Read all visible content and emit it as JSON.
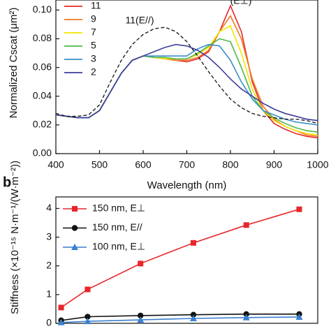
{
  "chart_data": [
    {
      "type": "line",
      "xlabel": "Wavelength (nm)",
      "ylabel": "Normalized Cscat (μm²)",
      "annotations": [
        "11(E//)",
        "(E⊥)"
      ],
      "x": [
        400,
        425,
        450,
        475,
        500,
        525,
        550,
        575,
        600,
        625,
        650,
        675,
        700,
        725,
        750,
        775,
        800,
        825,
        850,
        875,
        900,
        925,
        950,
        975,
        1000
      ],
      "xlim": [
        400,
        1000
      ],
      "xticks": [
        400,
        500,
        600,
        700,
        800,
        900,
        1000
      ],
      "ylim": [
        0,
        0.107
      ],
      "yticks": [
        {
          "value": 0,
          "label": "0.00"
        },
        {
          "value": 0.02,
          "label": "0.02"
        },
        {
          "value": 0.04,
          "label": "0.04"
        },
        {
          "value": 0.06,
          "label": "0.06"
        },
        {
          "value": 0.08,
          "label": "0.08"
        },
        {
          "value": 0.1,
          "label": "0.10"
        }
      ],
      "series": [
        {
          "name": "11",
          "color": "#e8262a",
          "values": [
            0.027,
            0.026,
            0.025,
            0.025,
            0.03,
            0.043,
            0.056,
            0.065,
            0.068,
            0.067,
            0.066,
            0.065,
            0.064,
            0.066,
            0.071,
            0.085,
            0.103,
            0.085,
            0.05,
            0.03,
            0.021,
            0.017,
            0.014,
            0.012,
            0.011
          ]
        },
        {
          "name": "9",
          "color": "#f07a22",
          "values": [
            0.027,
            0.026,
            0.025,
            0.025,
            0.03,
            0.043,
            0.056,
            0.065,
            0.068,
            0.067,
            0.066,
            0.065,
            0.065,
            0.067,
            0.072,
            0.085,
            0.096,
            0.08,
            0.052,
            0.033,
            0.024,
            0.019,
            0.016,
            0.013,
            0.012
          ]
        },
        {
          "name": "7",
          "color": "#f2e200",
          "values": [
            0.027,
            0.026,
            0.025,
            0.025,
            0.03,
            0.043,
            0.056,
            0.065,
            0.068,
            0.067,
            0.066,
            0.066,
            0.066,
            0.069,
            0.074,
            0.085,
            0.089,
            0.07,
            0.045,
            0.03,
            0.023,
            0.019,
            0.016,
            0.014,
            0.013
          ]
        },
        {
          "name": "5",
          "color": "#4cb848",
          "values": [
            0.027,
            0.026,
            0.025,
            0.025,
            0.03,
            0.043,
            0.056,
            0.065,
            0.068,
            0.067,
            0.067,
            0.066,
            0.066,
            0.07,
            0.075,
            0.08,
            0.078,
            0.06,
            0.04,
            0.03,
            0.025,
            0.021,
            0.018,
            0.016,
            0.015
          ]
        },
        {
          "name": "3",
          "color": "#3a8fc7",
          "values": [
            0.027,
            0.026,
            0.025,
            0.025,
            0.03,
            0.043,
            0.056,
            0.065,
            0.068,
            0.068,
            0.068,
            0.068,
            0.068,
            0.073,
            0.076,
            0.075,
            0.065,
            0.05,
            0.038,
            0.03,
            0.027,
            0.024,
            0.022,
            0.021,
            0.02
          ]
        },
        {
          "name": "2",
          "color": "#3d3d9c",
          "values": [
            0.027,
            0.026,
            0.025,
            0.025,
            0.03,
            0.043,
            0.056,
            0.065,
            0.068,
            0.071,
            0.074,
            0.076,
            0.075,
            0.072,
            0.067,
            0.06,
            0.052,
            0.045,
            0.04,
            0.035,
            0.031,
            0.028,
            0.026,
            0.024,
            0.023
          ]
        },
        {
          "color": "#111111",
          "dashed": true,
          "values": [
            0.028,
            0.026,
            0.026,
            0.027,
            0.034,
            0.05,
            0.065,
            0.076,
            0.083,
            0.087,
            0.088,
            0.085,
            0.078,
            0.068,
            0.057,
            0.047,
            0.038,
            0.032,
            0.028,
            0.026,
            0.025,
            0.024,
            0.024,
            0.023,
            0.021
          ]
        }
      ]
    },
    {
      "type": "line",
      "panel": "b",
      "ylabel": "Stiffness (×10⁻¹⁵ N·m⁻¹/(W·m⁻²))",
      "x": [
        1,
        3,
        7,
        11,
        15,
        19
      ],
      "xlim": [
        0.6,
        20.4
      ],
      "ylim": [
        0,
        4.4
      ],
      "yticks": [
        0,
        1,
        2,
        3,
        4
      ],
      "series": [
        {
          "name": "150 nm, E⊥",
          "color": "#e8262a",
          "marker": "square",
          "values": [
            0.55,
            1.18,
            2.08,
            2.8,
            3.42,
            3.97
          ]
        },
        {
          "name": "150 nm, E//",
          "color": "#111111",
          "marker": "circle",
          "values": [
            0.1,
            0.23,
            0.27,
            0.3,
            0.32,
            0.32
          ]
        },
        {
          "name": "100 nm, E⊥",
          "color": "#3a7fd0",
          "marker": "triangle",
          "values": [
            0.03,
            0.07,
            0.12,
            0.17,
            0.2,
            0.22
          ]
        }
      ]
    }
  ]
}
